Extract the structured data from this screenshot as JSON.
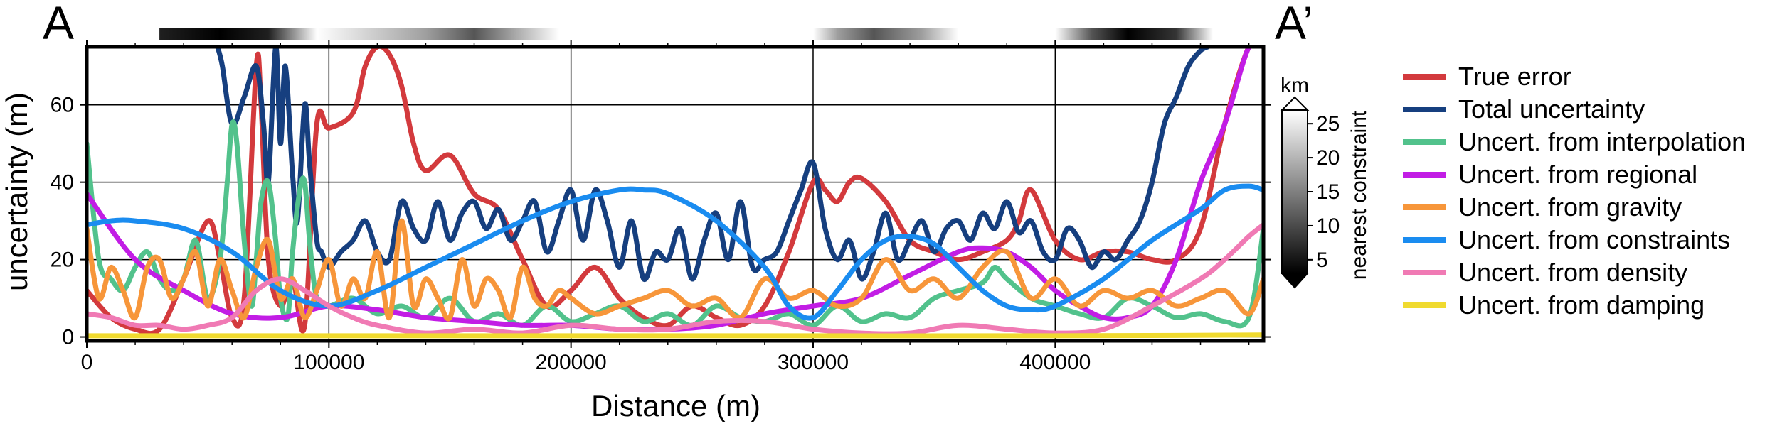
{
  "chart_data": {
    "type": "line",
    "corner_left": "A",
    "corner_right": "A’",
    "xlabel": "Distance (m)",
    "ylabel": "uncertainty (m)",
    "xlim": [
      0,
      486000
    ],
    "ylim": [
      -1,
      75
    ],
    "x_ticks": [
      0,
      100000,
      200000,
      300000,
      400000
    ],
    "y_ticks": [
      0,
      20,
      40,
      60
    ],
    "grid": true,
    "legend_position": "right",
    "colorbar": {
      "unit": "km",
      "label": "nearest constraint",
      "ticks": [
        5,
        10,
        15,
        20,
        25
      ],
      "range": [
        3,
        27
      ]
    },
    "proximity_strip": [
      {
        "x": 30000,
        "value": 6
      },
      {
        "x": 55000,
        "value": 3
      },
      {
        "x": 75000,
        "value": 6
      },
      {
        "x": 95000,
        "value": 27
      },
      {
        "x": 140000,
        "value": 18
      },
      {
        "x": 160000,
        "value": 11
      },
      {
        "x": 175000,
        "value": 18
      },
      {
        "x": 195000,
        "value": 27
      },
      {
        "x": 300000,
        "value": 27
      },
      {
        "x": 310000,
        "value": 18
      },
      {
        "x": 325000,
        "value": 11
      },
      {
        "x": 345000,
        "value": 18
      },
      {
        "x": 360000,
        "value": 27
      },
      {
        "x": 400000,
        "value": 27
      },
      {
        "x": 415000,
        "value": 11
      },
      {
        "x": 430000,
        "value": 3
      },
      {
        "x": 450000,
        "value": 8
      },
      {
        "x": 465000,
        "value": 27
      }
    ],
    "series": [
      {
        "name": "True error",
        "color": "#d33a3d",
        "x": [
          0,
          10000,
          20000,
          30000,
          40000,
          50000,
          55000,
          60000,
          65000,
          70000,
          72000,
          75000,
          80000,
          85000,
          90000,
          95000,
          100000,
          110000,
          115000,
          120000,
          125000,
          130000,
          135000,
          140000,
          150000,
          160000,
          170000,
          180000,
          190000,
          200000,
          210000,
          220000,
          230000,
          240000,
          250000,
          260000,
          270000,
          280000,
          290000,
          300000,
          305000,
          310000,
          315000,
          320000,
          330000,
          340000,
          350000,
          360000,
          370000,
          380000,
          385000,
          390000,
          400000,
          410000,
          420000,
          430000,
          440000,
          450000,
          460000,
          470000,
          480000,
          486000
        ],
        "y": [
          12,
          5,
          2,
          2,
          15,
          30,
          20,
          5,
          10,
          70,
          60,
          20,
          8,
          15,
          3,
          55,
          54,
          58,
          70,
          75,
          73,
          65,
          50,
          43,
          47,
          37,
          33,
          20,
          8,
          12,
          18,
          10,
          5,
          3,
          8,
          5,
          3,
          8,
          22,
          40,
          38,
          35,
          40,
          41,
          35,
          25,
          22,
          20,
          22,
          25,
          30,
          38,
          25,
          20,
          22,
          22,
          20,
          20,
          28,
          55,
          75,
          75
        ]
      },
      {
        "name": "Total uncertainty",
        "color": "#163f7f",
        "x": [
          54000,
          56000,
          60000,
          65000,
          70000,
          73000,
          75000,
          78000,
          80000,
          82000,
          85000,
          87000,
          90000,
          92000,
          95000,
          97000,
          100000,
          105000,
          110000,
          115000,
          120000,
          125000,
          130000,
          135000,
          140000,
          145000,
          150000,
          155000,
          160000,
          165000,
          170000,
          175000,
          180000,
          185000,
          190000,
          195000,
          200000,
          205000,
          210000,
          215000,
          220000,
          225000,
          230000,
          235000,
          240000,
          245000,
          250000,
          255000,
          260000,
          265000,
          270000,
          275000,
          280000,
          285000,
          290000,
          295000,
          300000,
          305000,
          310000,
          315000,
          320000,
          325000,
          330000,
          335000,
          340000,
          345000,
          350000,
          355000,
          360000,
          365000,
          370000,
          375000,
          380000,
          385000,
          390000,
          395000,
          400000,
          405000,
          410000,
          415000,
          420000,
          425000,
          430000,
          435000,
          440000,
          445000,
          450000,
          455000,
          460000,
          463000
        ],
        "y": [
          75,
          70,
          55,
          62,
          70,
          55,
          40,
          75,
          50,
          70,
          42,
          30,
          60,
          45,
          25,
          22,
          18,
          22,
          25,
          30,
          22,
          20,
          35,
          28,
          25,
          35,
          25,
          32,
          35,
          28,
          33,
          25,
          30,
          35,
          22,
          30,
          38,
          25,
          38,
          30,
          18,
          30,
          15,
          22,
          20,
          28,
          15,
          25,
          32,
          20,
          35,
          18,
          20,
          22,
          30,
          38,
          45,
          28,
          20,
          25,
          15,
          22,
          32,
          20,
          25,
          30,
          22,
          28,
          30,
          25,
          32,
          28,
          35,
          27,
          30,
          22,
          20,
          28,
          25,
          18,
          22,
          20,
          25,
          30,
          40,
          55,
          62,
          70,
          74,
          75
        ]
      },
      {
        "name": "Uncert. from interpolation",
        "color": "#52c28c",
        "x": [
          0,
          5000,
          10000,
          15000,
          20000,
          25000,
          30000,
          35000,
          40000,
          45000,
          50000,
          55000,
          58000,
          60000,
          62000,
          65000,
          68000,
          70000,
          72000,
          75000,
          78000,
          80000,
          83000,
          85000,
          88000,
          90000,
          92000,
          95000,
          100000,
          110000,
          120000,
          130000,
          140000,
          150000,
          160000,
          170000,
          180000,
          190000,
          200000,
          210000,
          220000,
          230000,
          240000,
          250000,
          260000,
          270000,
          280000,
          290000,
          300000,
          310000,
          320000,
          330000,
          340000,
          350000,
          360000,
          370000,
          375000,
          380000,
          390000,
          400000,
          410000,
          420000,
          430000,
          440000,
          450000,
          460000,
          470000,
          480000,
          486000
        ],
        "y": [
          50,
          20,
          15,
          12,
          18,
          22,
          15,
          12,
          15,
          25,
          10,
          20,
          40,
          55,
          50,
          25,
          8,
          20,
          35,
          40,
          25,
          10,
          5,
          22,
          38,
          40,
          25,
          10,
          8,
          10,
          6,
          8,
          5,
          10,
          4,
          6,
          3,
          8,
          4,
          6,
          8,
          4,
          6,
          3,
          8,
          5,
          4,
          6,
          3,
          8,
          4,
          6,
          5,
          10,
          12,
          14,
          18,
          15,
          10,
          8,
          6,
          5,
          10,
          8,
          5,
          6,
          4,
          5,
          28
        ]
      },
      {
        "name": "Uncert. from regional",
        "color": "#c21de5",
        "x": [
          0,
          20000,
          40000,
          60000,
          80000,
          100000,
          120000,
          140000,
          160000,
          180000,
          200000,
          220000,
          240000,
          260000,
          280000,
          300000,
          320000,
          340000,
          360000,
          370000,
          380000,
          390000,
          400000,
          410000,
          420000,
          430000,
          440000,
          450000,
          460000,
          470000,
          480000,
          486000
        ],
        "y": [
          37,
          20,
          12,
          6,
          5,
          8,
          7,
          5,
          4,
          3,
          3,
          2,
          2,
          3,
          6,
          8,
          10,
          16,
          22,
          23,
          22,
          18,
          12,
          8,
          5,
          5,
          8,
          20,
          40,
          55,
          75,
          75
        ]
      },
      {
        "name": "Uncert. from gravity",
        "color": "#f7963a",
        "x": [
          0,
          5000,
          10000,
          15000,
          20000,
          25000,
          30000,
          35000,
          40000,
          45000,
          50000,
          55000,
          60000,
          65000,
          70000,
          75000,
          80000,
          85000,
          90000,
          95000,
          100000,
          105000,
          110000,
          115000,
          120000,
          125000,
          130000,
          135000,
          140000,
          145000,
          150000,
          155000,
          160000,
          165000,
          170000,
          175000,
          180000,
          185000,
          190000,
          195000,
          200000,
          210000,
          220000,
          230000,
          240000,
          250000,
          260000,
          270000,
          280000,
          290000,
          300000,
          310000,
          320000,
          330000,
          340000,
          350000,
          360000,
          370000,
          380000,
          390000,
          400000,
          410000,
          420000,
          430000,
          440000,
          450000,
          460000,
          470000,
          480000,
          486000
        ],
        "y": [
          28,
          10,
          18,
          12,
          5,
          18,
          20,
          10,
          15,
          22,
          8,
          20,
          12,
          5,
          18,
          25,
          10,
          15,
          5,
          12,
          20,
          8,
          15,
          10,
          22,
          5,
          30,
          8,
          15,
          10,
          5,
          20,
          8,
          15,
          12,
          5,
          18,
          10,
          8,
          12,
          10,
          6,
          8,
          10,
          12,
          8,
          10,
          5,
          15,
          10,
          12,
          8,
          10,
          20,
          12,
          15,
          10,
          18,
          22,
          10,
          15,
          8,
          12,
          10,
          12,
          8,
          10,
          12,
          6,
          15
        ]
      },
      {
        "name": "Uncert. from constraints",
        "color": "#1a8cf0",
        "x": [
          0,
          10000,
          20000,
          40000,
          60000,
          80000,
          100000,
          120000,
          140000,
          160000,
          180000,
          200000,
          220000,
          230000,
          240000,
          260000,
          280000,
          290000,
          300000,
          310000,
          320000,
          330000,
          340000,
          350000,
          360000,
          370000,
          380000,
          390000,
          400000,
          420000,
          440000,
          460000,
          470000,
          480000,
          486000
        ],
        "y": [
          29,
          30,
          30,
          28,
          22,
          12,
          8,
          12,
          18,
          24,
          30,
          35,
          38,
          38,
          37,
          30,
          18,
          8,
          5,
          12,
          20,
          25,
          26,
          24,
          18,
          12,
          8,
          7,
          8,
          15,
          25,
          33,
          38,
          39,
          38
        ]
      },
      {
        "name": "Uncert. from density",
        "color": "#f07ab4",
        "x": [
          0,
          10000,
          20000,
          30000,
          40000,
          50000,
          60000,
          70000,
          80000,
          90000,
          100000,
          110000,
          120000,
          140000,
          160000,
          180000,
          200000,
          220000,
          240000,
          260000,
          280000,
          300000,
          320000,
          340000,
          360000,
          380000,
          400000,
          420000,
          440000,
          460000,
          470000,
          480000,
          486000
        ],
        "y": [
          6,
          5,
          3,
          3,
          2,
          3,
          5,
          12,
          15,
          12,
          8,
          5,
          3,
          1,
          2,
          1,
          3,
          2,
          2,
          4,
          4,
          2,
          1,
          1,
          3,
          2,
          1,
          2,
          8,
          15,
          20,
          26,
          29
        ]
      },
      {
        "name": "Uncert. from damping",
        "color": "#f0da2f",
        "x": [
          0,
          100000,
          200000,
          300000,
          400000,
          486000
        ],
        "y": [
          0.3,
          0.3,
          0.3,
          0.3,
          0.3,
          0.5
        ]
      }
    ]
  }
}
